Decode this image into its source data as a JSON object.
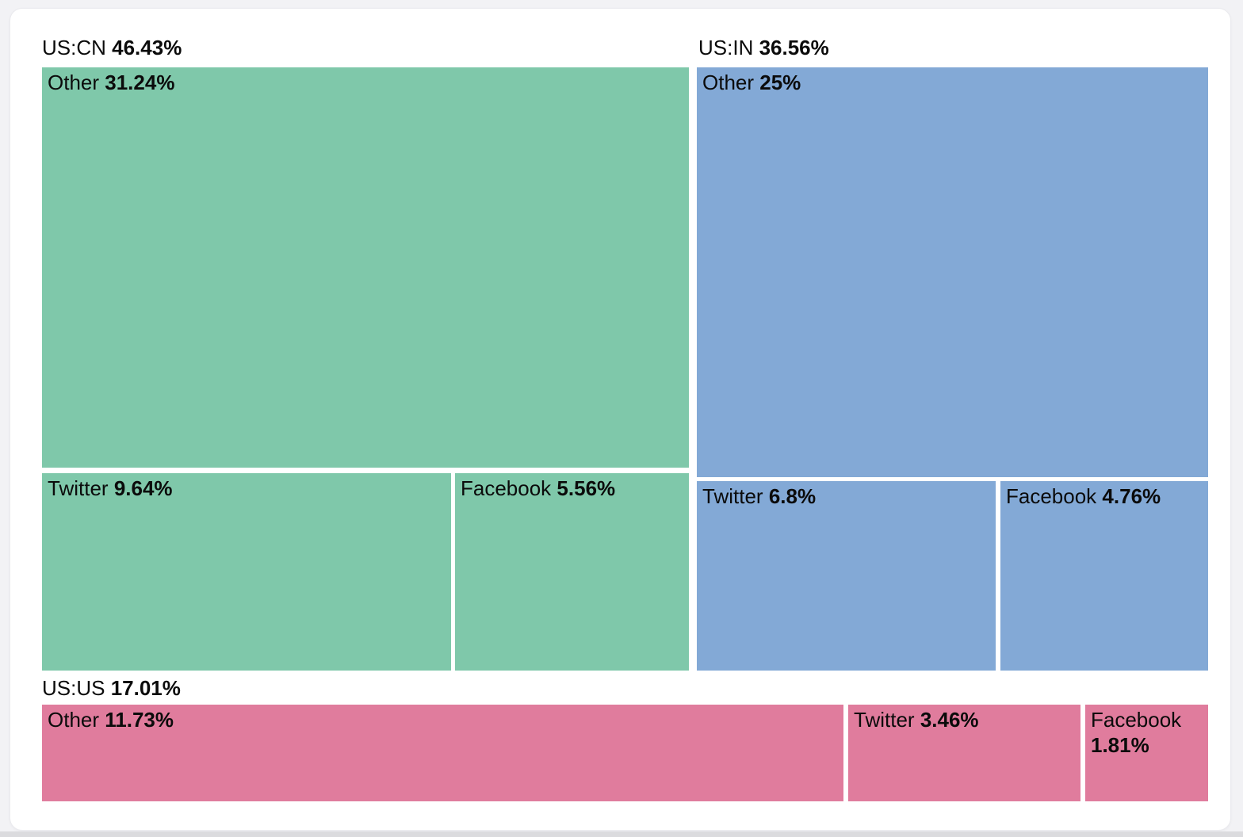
{
  "chart_data": {
    "type": "treemap",
    "title": "",
    "legend": "none",
    "groups": [
      {
        "label": "US:CN",
        "value_label": "46.43%",
        "value": 46.43,
        "color": "#7fc8aa",
        "children": [
          {
            "label": "Other",
            "value_label": "31.24%",
            "value": 31.24
          },
          {
            "label": "Twitter",
            "value_label": "9.64%",
            "value": 9.64
          },
          {
            "label": "Facebook",
            "value_label": "5.56%",
            "value": 5.56
          }
        ]
      },
      {
        "label": "US:IN",
        "value_label": "36.56%",
        "value": 36.56,
        "color": "#83a9d6",
        "children": [
          {
            "label": "Other",
            "value_label": "25%",
            "value": 25.0
          },
          {
            "label": "Twitter",
            "value_label": "6.8%",
            "value": 6.8
          },
          {
            "label": "Facebook",
            "value_label": "4.76%",
            "value": 4.76
          }
        ]
      },
      {
        "label": "US:US",
        "value_label": "17.01%",
        "value": 17.01,
        "color": "#e07c9d",
        "children": [
          {
            "label": "Other",
            "value_label": "11.73%",
            "value": 11.73
          },
          {
            "label": "Twitter",
            "value_label": "3.46%",
            "value": 3.46
          },
          {
            "label": "Facebook",
            "value_label": "1.81%",
            "value": 1.81
          }
        ]
      }
    ],
    "colors": {
      "us_cn": "#7fc8aa",
      "us_in": "#83a9d6",
      "us_us": "#e07c9d",
      "text": "#0b0b0b",
      "page_background": "#f2f2f5",
      "card_background": "#ffffff"
    }
  }
}
